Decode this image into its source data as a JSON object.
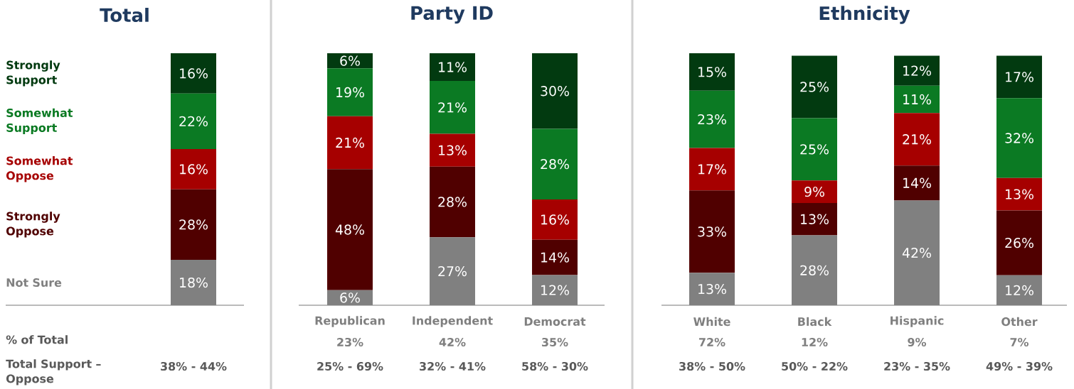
{
  "chart_data": [
    {
      "type": "bar",
      "stacked": true,
      "title": "Total",
      "categories": [
        null
      ],
      "series": [
        {
          "name": "Not Sure",
          "color": "#808080",
          "values": [
            18
          ],
          "value_labels": [
            "18%"
          ]
        },
        {
          "name": "Strongly Oppose",
          "color": "#500000",
          "values": [
            28
          ],
          "value_labels": [
            "28%"
          ]
        },
        {
          "name": "Somewhat Oppose",
          "color": "#a60000",
          "values": [
            16
          ],
          "value_labels": [
            "16%"
          ]
        },
        {
          "name": "Somewhat Support",
          "color": "#0b7a23",
          "values": [
            22
          ],
          "value_labels": [
            "22%"
          ]
        },
        {
          "name": "Strongly Support",
          "color": "#023a10",
          "values": [
            16
          ],
          "value_labels": [
            "16%"
          ]
        }
      ],
      "annotations": [
        "% of Total",
        "Total Support – Oppose",
        "38% - 44%"
      ]
    },
    {
      "type": "bar",
      "stacked": true,
      "title": "Party ID",
      "categories": [
        "Republican",
        "Independent",
        "Democrat"
      ],
      "series": [
        {
          "color": "#808080",
          "values": [
            6,
            27,
            12
          ],
          "value_labels": [
            "6%",
            "27%",
            "12%"
          ]
        },
        {
          "color": "#500000",
          "values": [
            48,
            28,
            14
          ],
          "value_labels": [
            "48%",
            "28%",
            "14%"
          ]
        },
        {
          "color": "#a60000",
          "values": [
            21,
            13,
            16
          ],
          "value_labels": [
            "21%",
            "13%",
            "16%"
          ]
        },
        {
          "color": "#0b7a23",
          "values": [
            19,
            21,
            28
          ],
          "value_labels": [
            "19%",
            "21%",
            "28%"
          ]
        },
        {
          "color": "#023a10",
          "values": [
            6,
            11,
            30
          ],
          "value_labels": [
            "6%",
            "11%",
            "30%"
          ]
        }
      ],
      "annotations": [
        "23%",
        "25% - 69%",
        "42%",
        "32% - 41%",
        "35%",
        "58% - 30%"
      ]
    },
    {
      "type": "bar",
      "stacked": true,
      "title": "Ethnicity",
      "categories": [
        "White",
        "Black",
        "Hispanic",
        "Other"
      ],
      "series": [
        {
          "color": "#808080",
          "values": [
            13,
            28,
            42,
            12
          ],
          "value_labels": [
            "13%",
            "28%",
            "42%",
            "12%"
          ]
        },
        {
          "color": "#500000",
          "values": [
            33,
            13,
            14,
            26
          ],
          "value_labels": [
            "33%",
            "13%",
            "14%",
            "26%"
          ]
        },
        {
          "color": "#a60000",
          "values": [
            17,
            9,
            21,
            13
          ],
          "value_labels": [
            "17%",
            "9%",
            "21%",
            "13%"
          ]
        },
        {
          "color": "#0b7a23",
          "values": [
            23,
            25,
            11,
            32
          ],
          "value_labels": [
            "23%",
            "25%",
            "11%",
            "32%"
          ]
        },
        {
          "color": "#023a10",
          "values": [
            15,
            25,
            12,
            17
          ],
          "value_labels": [
            "15%",
            "25%",
            "12%",
            "17%"
          ]
        }
      ],
      "annotations": [
        "72%",
        "38% - 50%",
        "12%",
        "50% - 22%",
        "9%",
        "23% - 35%",
        "7%",
        "49% - 39%"
      ]
    }
  ]
}
